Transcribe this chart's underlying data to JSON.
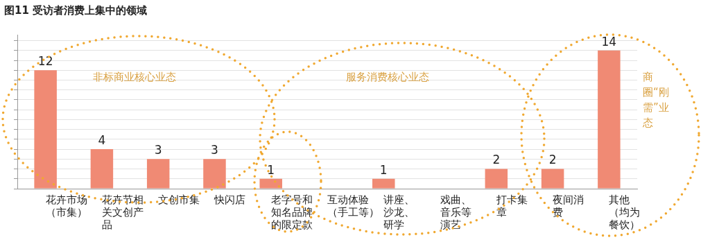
{
  "chart_data": {
    "type": "bar",
    "title": "图11 受访者消费上集中的领域",
    "categories": [
      "花卉市场（市集）",
      "花卉节相关文创产品",
      "文创市集",
      "快闪店",
      "老字号和知名品牌的限定款",
      "互动体验（手工等）",
      "讲座、沙龙、研学",
      "戏曲、音乐等演艺",
      "打卡集章",
      "夜间消费",
      "其他（均为餐饮）"
    ],
    "values": [
      12,
      4,
      3,
      3,
      1,
      0,
      1,
      0,
      2,
      2,
      14
    ],
    "value_labels": [
      "12",
      "4",
      "3",
      "3",
      "1",
      null,
      "1",
      null,
      "2",
      "2",
      "14"
    ],
    "color": "#f08a74",
    "ylim": [
      0,
      15.6
    ],
    "yticks": [
      {
        "value": 0,
        "label": null
      },
      {
        "value": 1,
        "label": null
      },
      {
        "value": 2,
        "label": null
      },
      {
        "value": 3,
        "label": null
      },
      {
        "value": 4,
        "label": null
      },
      {
        "value": 5,
        "label": null
      },
      {
        "value": 6,
        "label": null
      },
      {
        "value": 7,
        "label": null
      },
      {
        "value": 8,
        "label": null
      },
      {
        "value": 9,
        "label": null
      },
      {
        "value": 10,
        "label": null
      },
      {
        "value": 11,
        "label": null
      },
      {
        "value": 12,
        "label": null
      },
      {
        "value": 13,
        "label": null
      },
      {
        "value": 14,
        "label": null
      },
      {
        "value": 15,
        "label": null
      }
    ],
    "tick_labels": "x",
    "grid": "y",
    "legend": false,
    "annotations": [
      "非标商业核心业态",
      "服务消费核心业态",
      "商圈“刚需”业态"
    ]
  }
}
